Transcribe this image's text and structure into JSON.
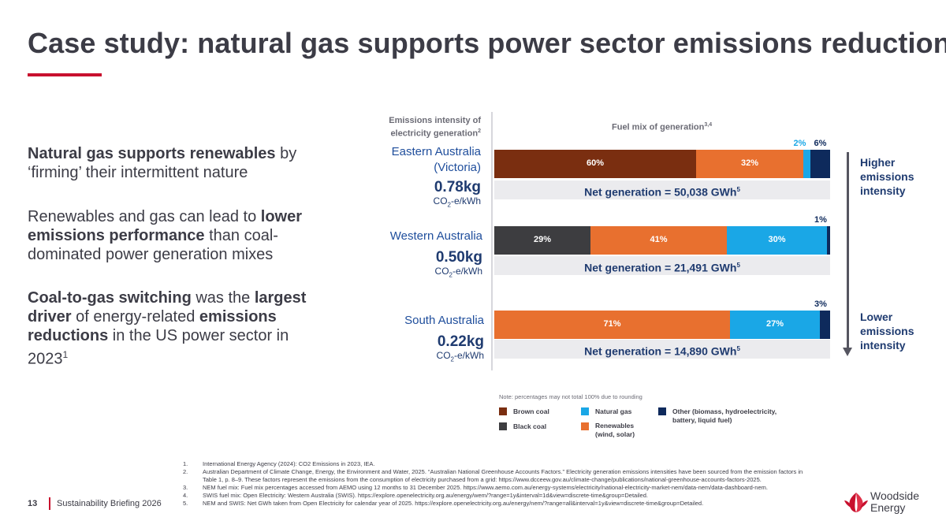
{
  "title": "Case study: natural gas supports power sector emissions reduction",
  "left_text": {
    "p1_bold": "Natural gas supports renewables",
    "p1_rest": " by ‘firming’ their intermittent nature",
    "p2_a": "Renewables and gas can lead to ",
    "p2_bold": "lower emissions performance",
    "p2_b": " than coal-dominated power generation mixes",
    "p3_bold1": "Coal-to-gas switching",
    "p3_a": " was the ",
    "p3_bold2": "largest driver",
    "p3_b": " of energy-related ",
    "p3_bold3": "emissions reductions",
    "p3_c": " in the US power sector in 2023",
    "p3_sup": "1"
  },
  "column_heads": {
    "intensity": "Emissions intensity of electricity generation",
    "intensity_sup": "2",
    "fuel_mix": "Fuel mix of generation",
    "fuel_mix_sup": "3,4"
  },
  "side_labels": {
    "higher": "Higher emissions intensity",
    "lower": "Lower emissions intensity"
  },
  "units": {
    "prefix": "CO",
    "sub": "2",
    "suffix": "-e/kWh"
  },
  "note": "Note: percentages may not total 100% due to rounding",
  "colors": {
    "brown_coal": "#7a2e10",
    "black_coal": "#3d3d40",
    "natural_gas": "#1aa7e6",
    "renewables": "#e8702f",
    "other": "#0e2a5c"
  },
  "legend": [
    {
      "key": "brown_coal",
      "label": "Brown coal"
    },
    {
      "key": "black_coal",
      "label": "Black coal"
    },
    {
      "key": "natural_gas",
      "label": "Natural gas"
    },
    {
      "key": "renewables",
      "label": "Renewables (wind, solar)"
    },
    {
      "key": "other",
      "label": "Other (biomass, hydroelectricity, battery, liquid fuel)"
    }
  ],
  "chart_data": {
    "type": "bar",
    "orientation": "horizontal",
    "stacked": true,
    "title": "Fuel mix of generation",
    "unit": "%",
    "rows": [
      {
        "region": "Eastern Australia (Victoria)",
        "intensity": "0.78kg",
        "net_generation_label": "Net generation = 50,038 GWh",
        "net_generation_sup": "5",
        "segments": [
          {
            "key": "brown_coal",
            "value": 60,
            "label": "60%"
          },
          {
            "key": "renewables",
            "value": 32,
            "label": "32%"
          },
          {
            "key": "natural_gas",
            "value": 2,
            "label": "2%"
          },
          {
            "key": "other",
            "value": 6,
            "label": "6%"
          }
        ]
      },
      {
        "region": "Western Australia",
        "intensity": "0.50kg",
        "net_generation_label": "Net generation = 21,491 GWh",
        "net_generation_sup": "5",
        "segments": [
          {
            "key": "black_coal",
            "value": 29,
            "label": "29%"
          },
          {
            "key": "renewables",
            "value": 41,
            "label": "41%"
          },
          {
            "key": "natural_gas",
            "value": 30,
            "label": "30%"
          },
          {
            "key": "other",
            "value": 1,
            "label": "1%"
          }
        ]
      },
      {
        "region": "South Australia",
        "intensity": "0.22kg",
        "net_generation_label": "Net generation = 14,890 GWh",
        "net_generation_sup": "5",
        "segments": [
          {
            "key": "renewables",
            "value": 71,
            "label": "71%"
          },
          {
            "key": "natural_gas",
            "value": 27,
            "label": "27%"
          },
          {
            "key": "other",
            "value": 3,
            "label": "3%"
          }
        ]
      }
    ]
  },
  "footnotes": [
    {
      "num": "1.",
      "text": "International Energy Agency (2024): CO2 Emissions in 2023, IEA."
    },
    {
      "num": "2.",
      "text": "Australian Department of Climate Change, Energy, the Environment and Water, 2025. “Australian National Greenhouse Accounts Factors.” Electricity generation emissions intensities have been sourced from the emission factors in Table 1, p. 8–9. These factors represent the emissions from the consumption of electricity purchased from a grid: https://www.dcceew.gov.au/climate-change/publications/national-greenhouse-accounts-factors-2025."
    },
    {
      "num": "3.",
      "text": "NEM fuel mix: Fuel mix percentages accessed from AEMO using 12 months to 31 December 2025. https://www.aemo.com.au/energy-systems/electricity/national-electricity-market-nem/data-nem/data-dashboard-nem."
    },
    {
      "num": "4.",
      "text": "SWIS fuel mix: Open Electricity: Western Australia (SWIS). https://explore.openelectricity.org.au/energy/wem/?range=1y&interval=1d&view=discrete-time&group=Detailed."
    },
    {
      "num": "5.",
      "text": "NEM and SWIS: Net GWh taken from Open Electricity for calendar year of 2025. https://explore.openelectricity.org.au/energy/nem/?range=all&interval=1y&view=discrete-time&group=Detailed."
    }
  ],
  "footer": {
    "page_number": "13",
    "doc_title": "Sustainability Briefing 2026",
    "logo_line1": "Woodside",
    "logo_line2": "Energy"
  }
}
